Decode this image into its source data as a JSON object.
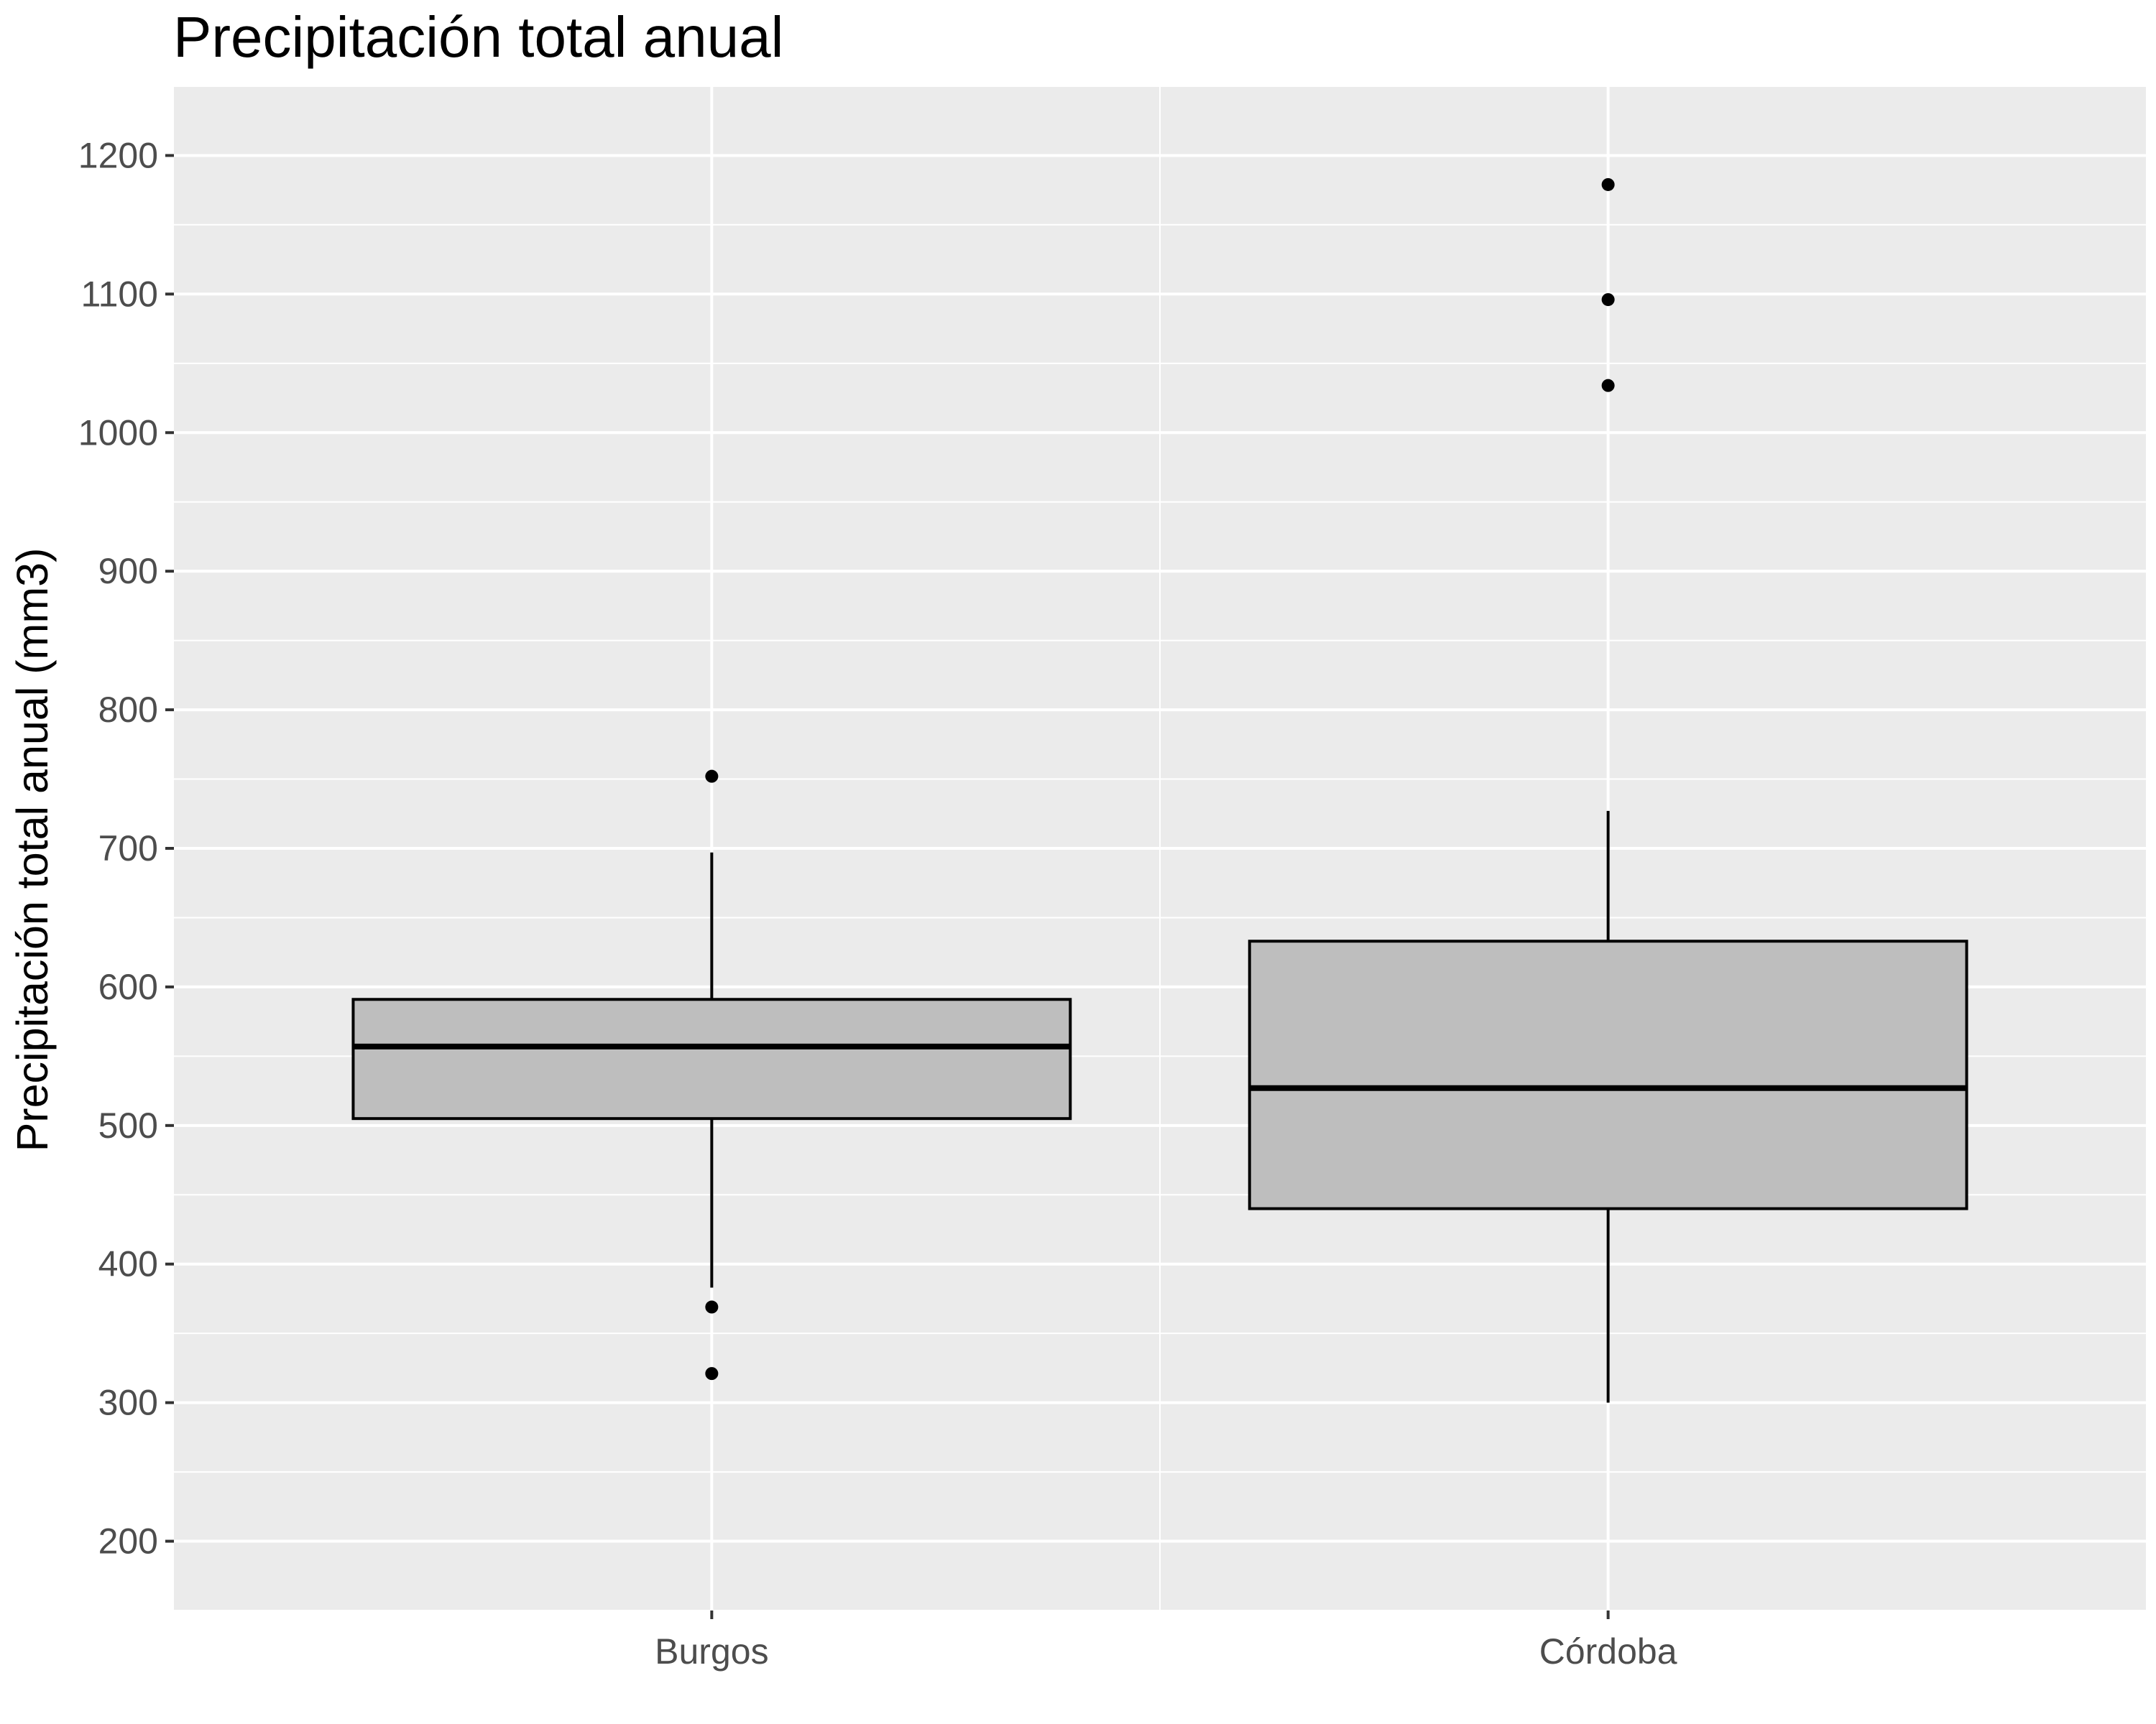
{
  "chart_data": {
    "type": "boxplot",
    "title": "Precipitación total anual",
    "xlabel": "",
    "ylabel": "Precipitación total anual (mm3)",
    "ylim": [
      150,
      1250
    ],
    "yticks": [
      200,
      300,
      400,
      500,
      600,
      700,
      800,
      900,
      1000,
      1100,
      1200
    ],
    "grid": true,
    "legend": "none",
    "categories": [
      "Burgos",
      "Córdoba"
    ],
    "boxes": [
      {
        "category": "Burgos",
        "whisker_low": 383,
        "q1": 505,
        "median": 557,
        "q3": 591,
        "whisker_high": 697,
        "outliers": [
          752,
          369,
          321
        ]
      },
      {
        "category": "Córdoba",
        "whisker_low": 300,
        "q1": 440,
        "median": 527,
        "q3": 633,
        "whisker_high": 727,
        "outliers": [
          1179,
          1096,
          1034
        ]
      }
    ],
    "colors": {
      "panel": "#ebebeb",
      "grid": "#ffffff",
      "box_fill": "#bebebe",
      "box_line": "#000000",
      "outlier": "#000000"
    }
  }
}
